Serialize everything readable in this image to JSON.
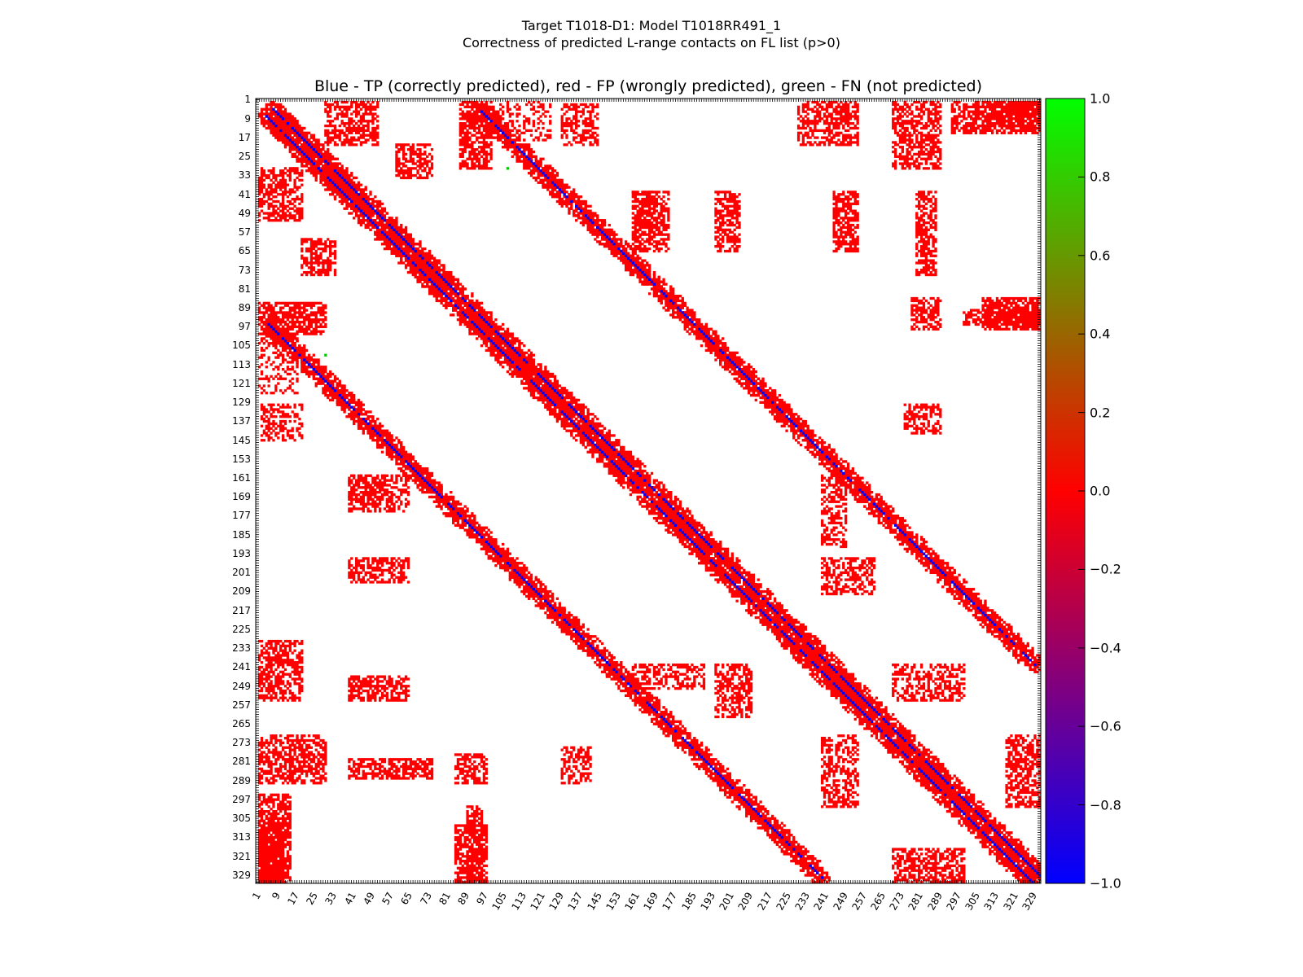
{
  "title_line1": "Target T1018-D1: Model T1018RR491_1",
  "title_line2": "Correctness of predicted L-range contacts on FL list (p>0)",
  "axes_title": "Blue - TP (correctly predicted), red - FP (wrongly predicted), green - FN (not predicted)",
  "chart_data": {
    "type": "heatmap",
    "title": "Blue - TP (correctly predicted), red - FP (wrongly predicted), green - FN (not predicted)",
    "xlabel": "",
    "ylabel": "",
    "n_residues": 332,
    "xlim": [
      1,
      332
    ],
    "ylim": [
      1,
      332
    ],
    "y_inverted": true,
    "grid": false,
    "tick_labels": [
      "1",
      "9",
      "17",
      "25",
      "33",
      "41",
      "49",
      "57",
      "65",
      "73",
      "81",
      "89",
      "97",
      "105",
      "113",
      "121",
      "129",
      "137",
      "145",
      "153",
      "161",
      "169",
      "177",
      "185",
      "193",
      "201",
      "209",
      "217",
      "225",
      "233",
      "241",
      "249",
      "257",
      "265",
      "273",
      "281",
      "289",
      "297",
      "305",
      "313",
      "321",
      "329"
    ],
    "colorbar": {
      "range": [
        -1.0,
        1.0
      ],
      "ticks": [
        "1.0",
        "0.8",
        "0.6",
        "0.4",
        "0.2",
        "0.0",
        "−0.2",
        "−0.4",
        "−0.6",
        "−0.8",
        "−1.0"
      ],
      "colormap": [
        "#0000ff",
        "#ff0000",
        "#00ff00"
      ]
    },
    "legend": [
      {
        "label": "TP (correctly predicted)",
        "value": -1.0,
        "color": "#0000ff"
      },
      {
        "label": "FP (wrongly predicted)",
        "value": 0.0,
        "color": "#ff0000"
      },
      {
        "label": "FN (not predicted)",
        "value": 1.0,
        "color": "#00ff00"
      }
    ],
    "fn_contacts": [
      [
        30,
        107
      ],
      [
        109,
        30
      ]
    ],
    "tp_diagonal_bands": [
      {
        "offset": 3,
        "from": 5,
        "to": 329
      },
      {
        "offset": 90,
        "from": 5,
        "to": 240
      }
    ],
    "fp_blocks": [
      [
        30,
        52,
        2,
        20,
        0.6
      ],
      [
        2,
        20,
        30,
        52,
        0.6
      ],
      [
        20,
        34,
        60,
        75,
        0.6
      ],
      [
        60,
        75,
        20,
        34,
        0.6
      ],
      [
        2,
        30,
        87,
        100,
        0.7
      ],
      [
        87,
        100,
        2,
        30,
        0.7
      ],
      [
        100,
        125,
        2,
        18,
        0.35
      ],
      [
        2,
        18,
        100,
        125,
        0.35
      ],
      [
        3,
        20,
        130,
        145,
        0.5
      ],
      [
        130,
        145,
        3,
        20,
        0.5
      ],
      [
        2,
        20,
        230,
        255,
        0.6
      ],
      [
        230,
        255,
        2,
        20,
        0.6
      ],
      [
        2,
        30,
        270,
        290,
        0.6
      ],
      [
        270,
        290,
        2,
        30,
        0.6
      ],
      [
        2,
        15,
        295,
        332,
        0.7
      ],
      [
        295,
        332,
        2,
        15,
        0.7
      ],
      [
        40,
        65,
        160,
        175,
        0.6
      ],
      [
        160,
        175,
        40,
        65,
        0.6
      ],
      [
        40,
        65,
        195,
        205,
        0.6
      ],
      [
        195,
        205,
        40,
        65,
        0.6
      ],
      [
        40,
        65,
        245,
        255,
        0.65
      ],
      [
        245,
        255,
        40,
        65,
        0.65
      ],
      [
        40,
        75,
        280,
        288,
        0.65
      ],
      [
        280,
        288,
        40,
        75,
        0.65
      ],
      [
        85,
        98,
        278,
        290,
        0.6
      ],
      [
        278,
        290,
        85,
        98,
        0.6
      ],
      [
        85,
        98,
        308,
        332,
        0.7
      ],
      [
        308,
        332,
        85,
        98,
        0.7
      ],
      [
        130,
        142,
        275,
        290,
        0.5
      ],
      [
        275,
        290,
        130,
        142,
        0.5
      ],
      [
        160,
        170,
        40,
        55,
        0.4
      ],
      [
        40,
        55,
        160,
        170,
        0.4
      ],
      [
        195,
        210,
        240,
        262,
        0.55
      ],
      [
        240,
        262,
        195,
        210,
        0.55
      ],
      [
        160,
        190,
        240,
        250,
        0.5
      ],
      [
        240,
        250,
        160,
        190,
        0.5
      ],
      [
        270,
        300,
        240,
        255,
        0.5
      ],
      [
        240,
        255,
        270,
        300,
        0.5
      ],
      [
        2,
        12,
        310,
        332,
        0.8
      ],
      [
        310,
        332,
        2,
        12,
        0.8
      ],
      [
        300,
        332,
        90,
        96,
        0.6
      ],
      [
        90,
        96,
        300,
        332,
        0.6
      ],
      [
        318,
        332,
        270,
        300,
        0.6
      ],
      [
        270,
        300,
        318,
        332,
        0.6
      ]
    ]
  }
}
